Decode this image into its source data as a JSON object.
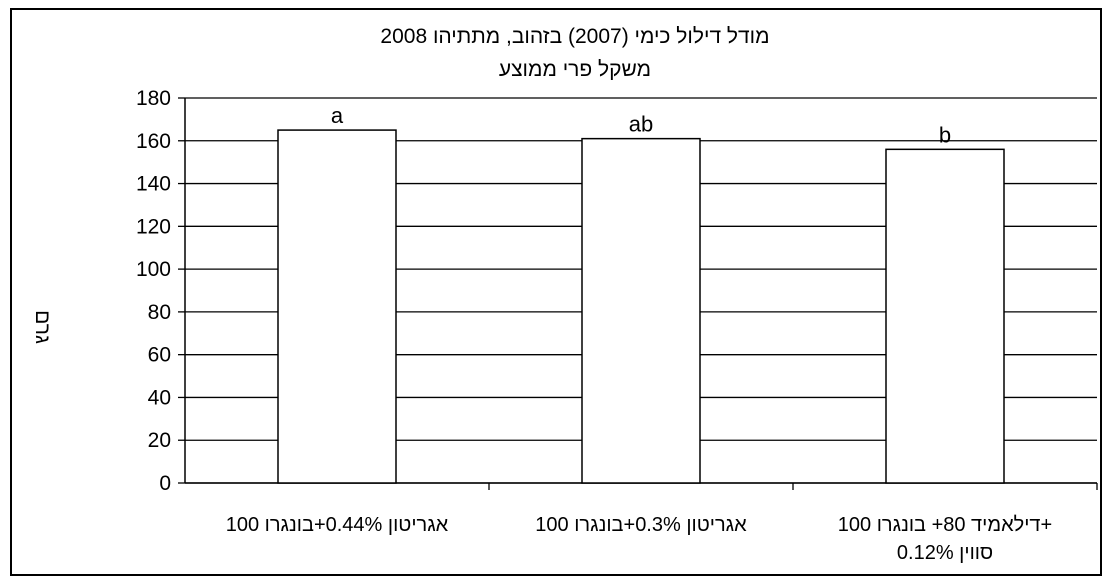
{
  "chart_data": {
    "type": "bar",
    "title": "מודל דילול כימי (2007) בזהוב, מתתיהו 2008",
    "subtitle": "משקל פרי ממוצע",
    "ylabel": "גרם",
    "xlabel": "",
    "ylim": [
      0,
      180
    ],
    "yticks": [
      0,
      20,
      40,
      60,
      80,
      100,
      120,
      140,
      160,
      180
    ],
    "grid": true,
    "legend": "none",
    "categories": [
      {
        "lines": [
          "אגריטון 0.44%+בונגרו 100"
        ]
      },
      {
        "lines": [
          "אגריטון 0.3%+בונגרו 100"
        ]
      },
      {
        "lines": [
          "דילאמיד 80+ בונגרו 100+",
          "סווין 0.12%"
        ]
      }
    ],
    "values": [
      165,
      161,
      156
    ],
    "data_labels": [
      "a",
      "ab",
      "b"
    ],
    "colors": {
      "bar_fill": "#ffffff",
      "bar_stroke": "#000000",
      "grid": "#000000"
    }
  }
}
